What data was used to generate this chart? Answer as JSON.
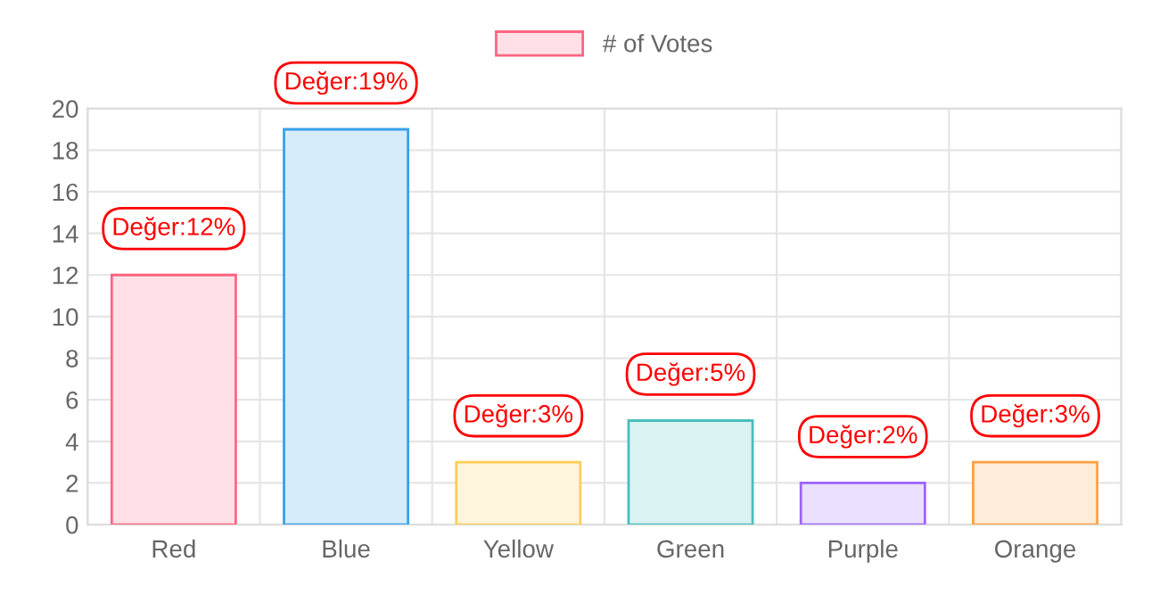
{
  "chart_data": {
    "type": "bar",
    "categories": [
      "Red",
      "Blue",
      "Yellow",
      "Green",
      "Purple",
      "Orange"
    ],
    "series": [
      {
        "name": "# of Votes",
        "color": "#ffe0e6",
        "colors": [
          "#ffe0e6",
          "#d7ecfb",
          "#fff5dd",
          "#dbf2f2",
          "#ebe0ff",
          "#ffecd9"
        ],
        "values": [
          12,
          19,
          3,
          5,
          2,
          3
        ],
        "value_labels": [
          "Değer:12%",
          "Değer:19%",
          "Değer:3%",
          "Değer:5%",
          "Değer:2%",
          "Değer:3%"
        ]
      }
    ],
    "ylim": [
      0,
      20
    ],
    "yticks": [
      0,
      2,
      4,
      6,
      8,
      10,
      12,
      14,
      16,
      18,
      20
    ],
    "grid": true,
    "legend": "top"
  }
}
